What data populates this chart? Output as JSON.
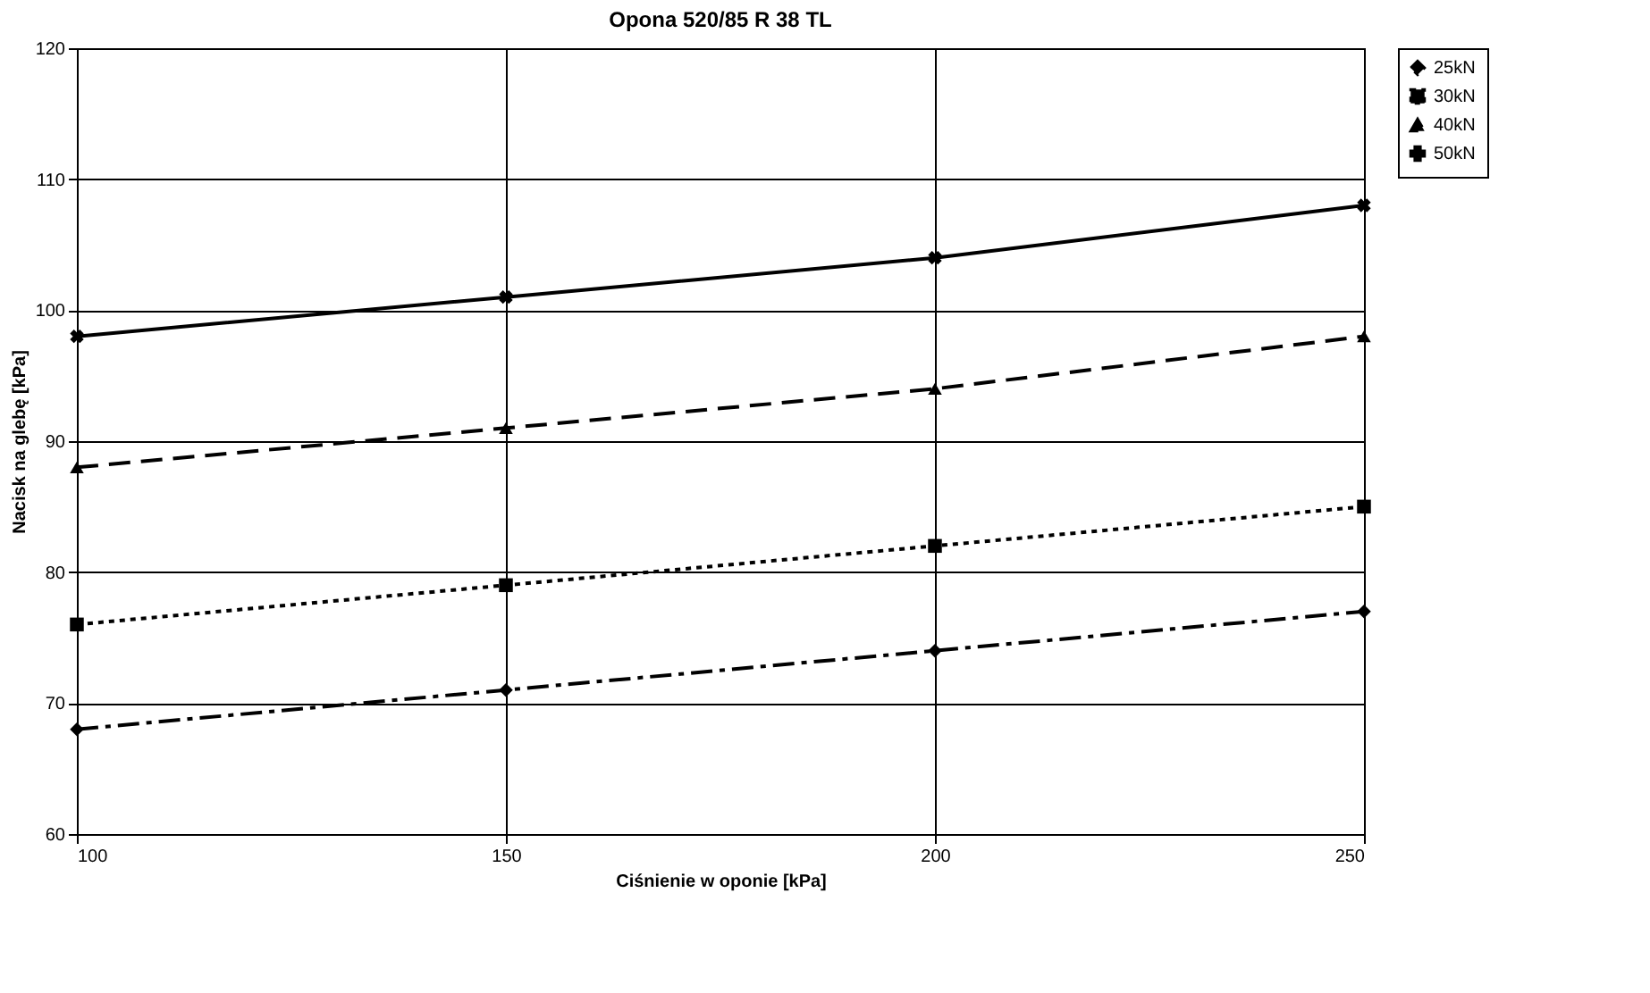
{
  "chart_data": {
    "type": "line",
    "title": "Opona 520/85 R 38 TL",
    "xlabel": "Ciśnienie w oponie [kPa]",
    "ylabel": "Nacisk na glebę [kPa]",
    "x": [
      100,
      150,
      200,
      250
    ],
    "series": [
      {
        "name": "25kN",
        "color": "#000000",
        "values": [
          68,
          71,
          74,
          77
        ],
        "marker": "diamond",
        "line_style": "dashdot"
      },
      {
        "name": "30kN",
        "color": "#000000",
        "values": [
          76,
          79,
          82,
          85
        ],
        "marker": "square",
        "line_style": "dotted"
      },
      {
        "name": "40kN",
        "color": "#000000",
        "values": [
          88,
          91,
          94,
          98
        ],
        "marker": "triangle",
        "line_style": "dashed"
      },
      {
        "name": "50kN",
        "color": "#000000",
        "values": [
          98,
          101,
          104,
          108
        ],
        "marker": "cross",
        "line_style": "solid"
      }
    ],
    "xlim": [
      100,
      250
    ],
    "xticks": [
      100,
      150,
      200,
      250
    ],
    "ylim": [
      60,
      120
    ],
    "yticks": [
      60,
      70,
      80,
      90,
      100,
      110,
      120
    ],
    "grid": true,
    "legend": "right"
  }
}
